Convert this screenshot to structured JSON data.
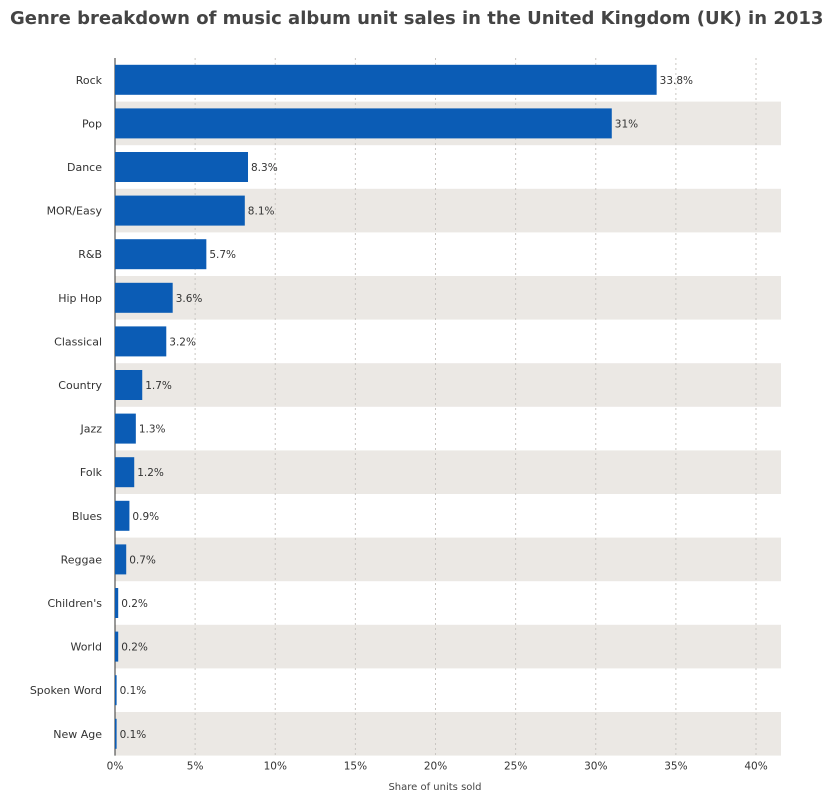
{
  "chart_data": {
    "type": "bar",
    "orientation": "horizontal",
    "title": "Genre breakdown of music album unit sales in the United Kingdom (UK) in 2013",
    "xlabel": "Share of units sold",
    "ylabel": "",
    "categories": [
      "Rock",
      "Pop",
      "Dance",
      "MOR/Easy",
      "R&B",
      "Hip Hop",
      "Classical",
      "Country",
      "Jazz",
      "Folk",
      "Blues",
      "Reggae",
      "Children's",
      "World",
      "Spoken Word",
      "New Age"
    ],
    "values": [
      33.8,
      31,
      8.3,
      8.1,
      5.7,
      3.6,
      3.2,
      1.7,
      1.3,
      1.2,
      0.9,
      0.7,
      0.2,
      0.2,
      0.1,
      0.1
    ],
    "value_labels": [
      "33.8%",
      "31%",
      "8.3%",
      "8.1%",
      "5.7%",
      "3.6%",
      "3.2%",
      "1.7%",
      "1.3%",
      "1.2%",
      "0.9%",
      "0.7%",
      "0.2%",
      "0.2%",
      "0.1%",
      "0.1%"
    ],
    "xlim": [
      0,
      40
    ],
    "x_ticks": [
      0,
      5,
      10,
      15,
      20,
      25,
      30,
      35,
      40
    ],
    "x_tick_labels": [
      "0%",
      "5%",
      "10%",
      "15%",
      "20%",
      "25%",
      "30%",
      "35%",
      "40%"
    ],
    "grid": true,
    "colors": {
      "bar": "#0b5cb5",
      "band": "#ebe8e4",
      "grid": "#c9c6c2"
    }
  }
}
